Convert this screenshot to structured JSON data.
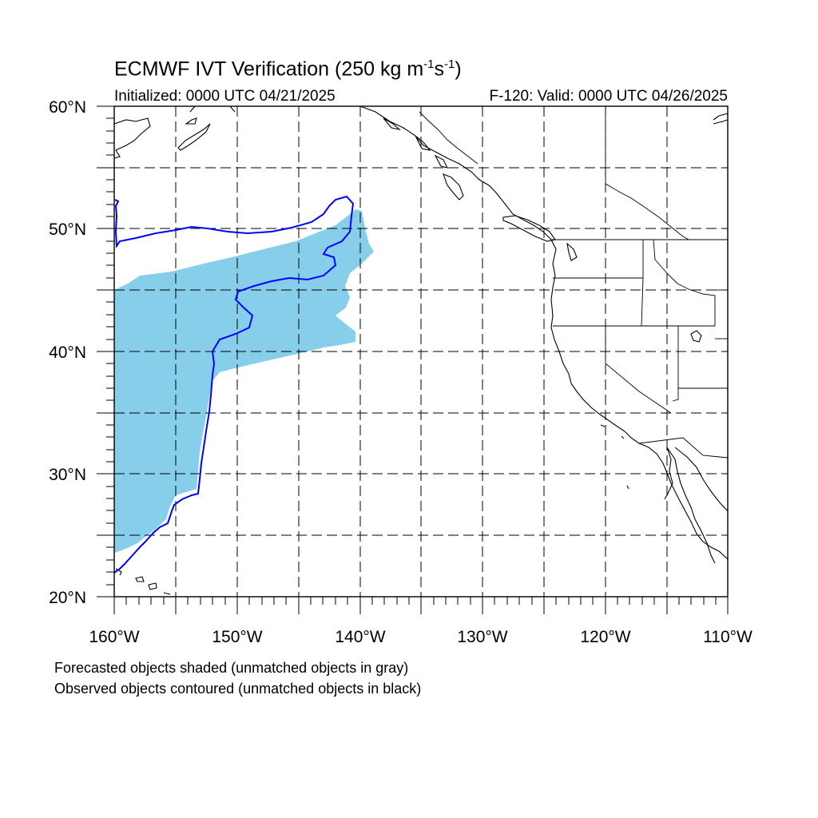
{
  "header": {
    "title_main": "ECMWF IVT Verification (250 kg m",
    "title_exp1": "-1",
    "title_mid": "s",
    "title_exp2": "-1",
    "title_end": ")",
    "initialized": "Initialized: 0000 UTC 04/21/2025",
    "valid": "F-120: Valid: 0000 UTC 04/26/2025"
  },
  "map": {
    "lat_labels": [
      "20°N",
      "30°N",
      "40°N",
      "50°N",
      "60°N"
    ],
    "lon_labels": [
      "160°W",
      "150°W",
      "140°W",
      "130°W",
      "120°W",
      "110°W"
    ],
    "lat_range": [
      20,
      60
    ],
    "lon_range": [
      -160,
      -110
    ],
    "grid": "dashed, 5 degree spacing",
    "forecast_color": "#87ceeb",
    "observed_color": "#0000ff",
    "coast_color": "#000000"
  },
  "legend": {
    "line1": "Forecasted objects shaded (unmatched objects in gray)",
    "line2": "Observed objects contoured (unmatched objects in black)"
  }
}
